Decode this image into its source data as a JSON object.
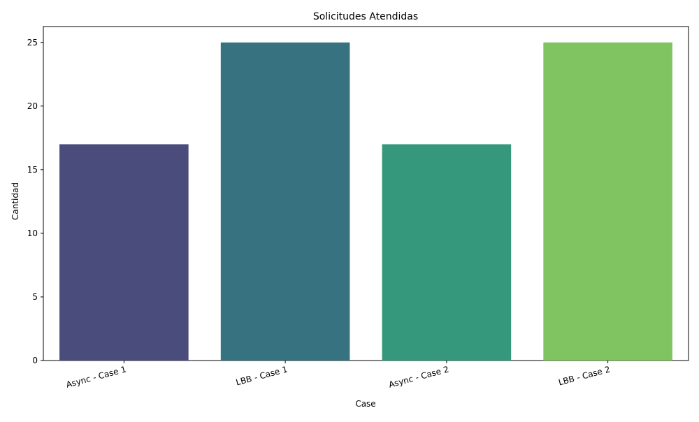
{
  "chart_data": {
    "type": "bar",
    "title": "Solicitudes Atendidas",
    "xlabel": "Case",
    "ylabel": "Cantidad",
    "categories": [
      "Async - Case 1",
      "LBB - Case 1",
      "Async - Case 2",
      "LBB - Case 2"
    ],
    "values": [
      17,
      25,
      17,
      25
    ],
    "colors": [
      "#482878",
      "#26828e",
      "#1fa187",
      "#6ece58"
    ],
    "bar_colors_rendered": [
      "#4a4c7c",
      "#367280",
      "#35987c",
      "#80c462"
    ],
    "ylim": [
      0,
      26.25
    ],
    "yticks": [
      0,
      5,
      10,
      15,
      20,
      25
    ],
    "grid": false,
    "legend": "none"
  }
}
